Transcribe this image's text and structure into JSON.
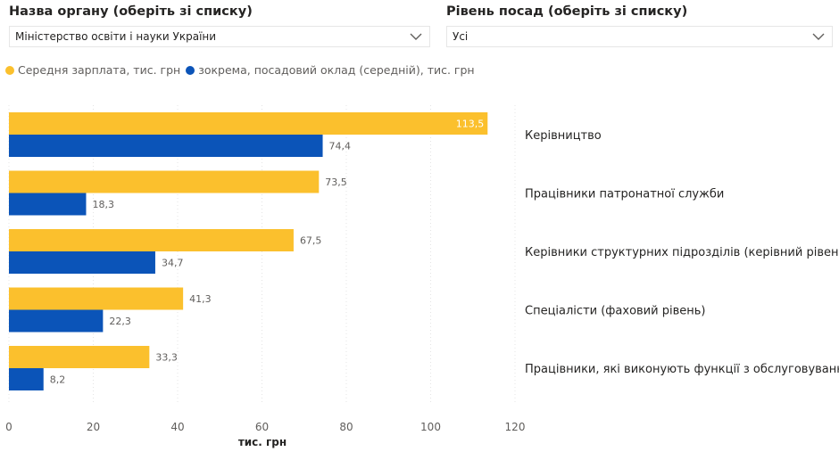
{
  "filters": [
    {
      "title": "Назва органу (оберіть зі списку)",
      "value": "Міністерство освіти і науки України"
    },
    {
      "title": "Рівень посад (оберіть зі списку)",
      "value": "Усі"
    }
  ],
  "colors": {
    "series1": "#FBC02D",
    "series2": "#0B54B8"
  },
  "chart_data": {
    "type": "bar",
    "orientation": "horizontal",
    "categories": [
      "Керівництво",
      "Працівники патронатної служби",
      "Керівники структурних підрозділів (керівний рівень)",
      "Спеціалісти (фаховий рівень)",
      "Працівники, які виконують функції з обслуговування"
    ],
    "series": [
      {
        "name": "Середня зарплата, тис. грн",
        "values": [
          113.5,
          73.5,
          67.5,
          41.3,
          33.3
        ],
        "labels": [
          "113,5",
          "73,5",
          "67,5",
          "41,3",
          "33,3"
        ]
      },
      {
        "name": "зокрема, посадовий оклад (середній), тис. грн",
        "values": [
          74.4,
          18.3,
          34.7,
          22.3,
          8.2
        ],
        "labels": [
          "74,4",
          "18,3",
          "34,7",
          "22,3",
          "8,2"
        ]
      }
    ],
    "xlabel": "тис. грн",
    "xlim": [
      0,
      120
    ],
    "xticks": [
      0,
      20,
      40,
      60,
      80,
      100,
      120
    ],
    "grid": true,
    "legend": "top-left"
  }
}
